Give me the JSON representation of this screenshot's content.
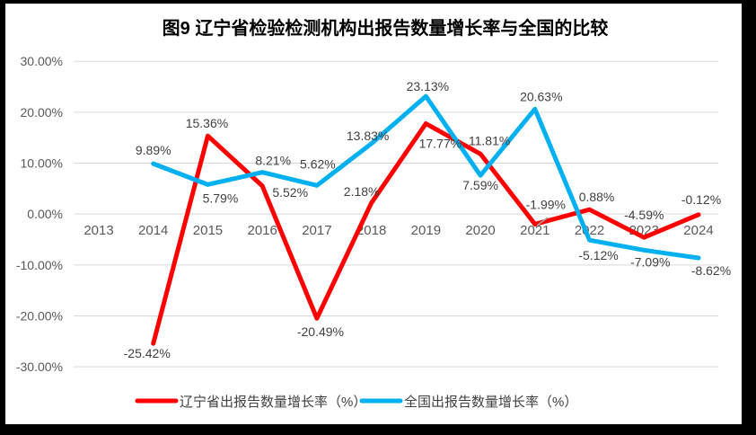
{
  "chart_data": {
    "type": "line",
    "title": "图9  辽宁省检验检测机构出报告数量增长率与全国的比较",
    "categories": [
      "2013",
      "2014",
      "2015",
      "2016",
      "2017",
      "2018",
      "2019",
      "2020",
      "2021",
      "2022",
      "2023",
      "2024"
    ],
    "series": [
      {
        "name": "辽宁省出报告数量增长率（%）",
        "color": "#FF0000",
        "values": [
          null,
          -25.42,
          15.36,
          5.52,
          -20.49,
          2.18,
          17.77,
          11.81,
          -1.99,
          0.88,
          -4.59,
          -0.12
        ]
      },
      {
        "name": "全国出报告数量增长率（%）",
        "color": "#00B0F0",
        "values": [
          null,
          9.89,
          5.79,
          8.21,
          5.62,
          13.83,
          23.13,
          7.59,
          20.63,
          -5.12,
          -7.09,
          -8.62
        ]
      }
    ],
    "xlabel": "",
    "ylabel": "",
    "ylim": [
      -30,
      30
    ],
    "ytick_step": 10,
    "ytick_labels": [
      "30.00%",
      "20.00%",
      "10.00%",
      "0.00%",
      "-10.00%",
      "-20.00%",
      "-30.00%"
    ],
    "data_label_format": "0.00%",
    "grid": true,
    "legend_position": "bottom",
    "colors": {
      "background": "#FFFFFF",
      "frame": "#000000",
      "gridline": "#D9D9D9",
      "tick_text": "#595959",
      "data_label_text": "#404040",
      "title_text": "#000000",
      "leader_line": "#A6A6A6"
    }
  }
}
